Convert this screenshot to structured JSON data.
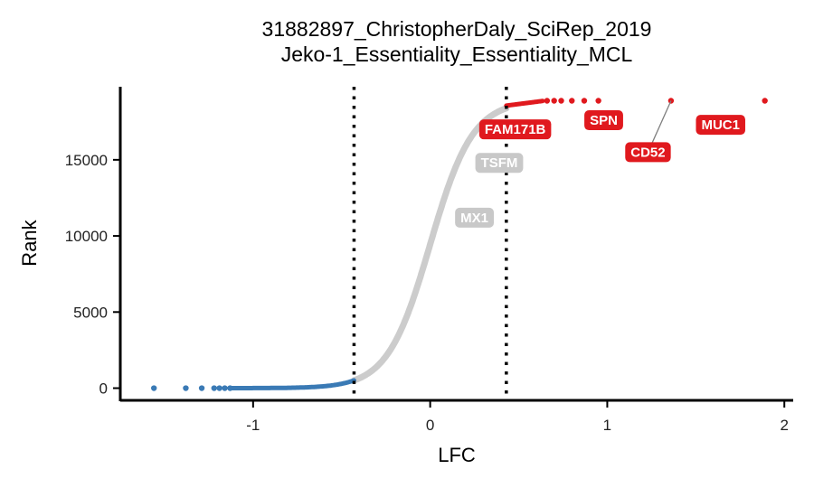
{
  "chart_data": {
    "type": "scatter",
    "title_lines": [
      "31882897_ChristopherDaly_SciRep_2019",
      "Jeko-1_Essentiality_Essentiality_MCL"
    ],
    "xlabel": "LFC",
    "ylabel": "Rank",
    "xlim": [
      -1.75,
      2.05
    ],
    "ylim": [
      -800,
      19800
    ],
    "x_ticks": [
      -1,
      0,
      1,
      2
    ],
    "x_tick_labels": [
      "-1",
      "0",
      "1",
      "2"
    ],
    "y_ticks": [
      0,
      5000,
      10000,
      15000
    ],
    "y_tick_labels": [
      "0",
      "5000",
      "10000",
      "15000"
    ],
    "thresholds": [
      -0.43,
      0.43
    ],
    "total_genes": 18900,
    "curve": {
      "center": 0.0,
      "scale": 0.12,
      "color": "#cccccc"
    },
    "depleted_points": [
      -1.56,
      -1.38,
      -1.29,
      -1.22,
      -1.19,
      -1.16,
      -1.13
    ],
    "enriched_points": [
      0.66,
      0.7,
      0.74,
      0.8,
      0.87,
      0.95,
      1.36,
      1.89
    ],
    "colors": {
      "depleted": "#3a7ab5",
      "enriched": "#e0191e",
      "neutral": "#cccccc",
      "neutral_label": "#c8c8c8"
    },
    "labels": [
      {
        "text": "FAM171B",
        "x": 0.48,
        "y": 17000,
        "color": "#e0191e"
      },
      {
        "text": "SPN",
        "x": 0.98,
        "y": 17600,
        "color": "#e0191e"
      },
      {
        "text": "MUC1",
        "x": 1.64,
        "y": 17300,
        "color": "#e0191e"
      },
      {
        "text": "CD52",
        "x": 1.23,
        "y": 15500,
        "color": "#e0191e",
        "point_x": 1.36,
        "point_y": 18880
      },
      {
        "text": "TSFM",
        "x": 0.39,
        "y": 14800,
        "color": "#c8c8c8"
      },
      {
        "text": "MX1",
        "x": 0.25,
        "y": 11200,
        "color": "#c8c8c8"
      }
    ],
    "grid": false,
    "legend": "none"
  }
}
